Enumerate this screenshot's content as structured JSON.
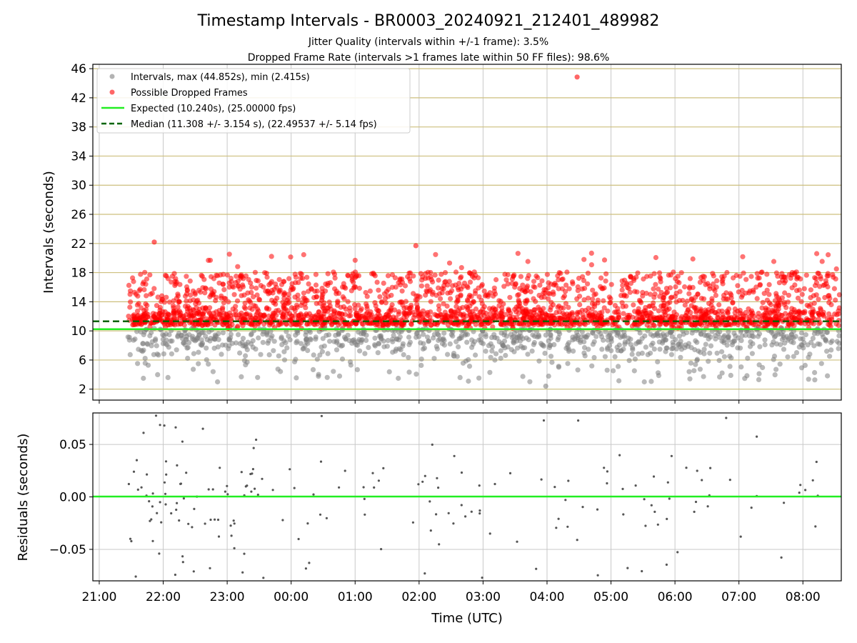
{
  "chart_data": [
    {
      "type": "scatter",
      "title": "Timestamp Intervals - BR0003_20240921_212401_489982",
      "subtitle_lines": [
        "Jitter Quality (intervals within +/-1 frame): 3.5%",
        "Dropped Frame Rate (intervals >1 frames late within 50 FF files): 98.6%"
      ],
      "xlabel": "",
      "ylabel": "Intervals (seconds)",
      "xlim_hours": [
        -3.1,
        8.6
      ],
      "ylim": [
        0.5,
        46.6
      ],
      "y_ticks": [
        2,
        6,
        10,
        14,
        18,
        22,
        26,
        30,
        34,
        38,
        42,
        46
      ],
      "legend_position": "top-left",
      "grid": true,
      "series": [
        {
          "name": "Intervals, max (44.852s), min (2.415s)",
          "color": "#808080",
          "kind": "points"
        },
        {
          "name": "Possible Dropped Frames",
          "color": "#ff0000",
          "kind": "points"
        },
        {
          "name": "Expected (10.240s), (25.00000 fps)",
          "color": "#22ee22",
          "kind": "hline",
          "y": 10.24
        },
        {
          "name": "Median (11.308 +/- 3.154 s), (22.49537 +/- 5.14 fps)",
          "color": "#006400",
          "kind": "hline-dashed",
          "y": 11.308
        }
      ],
      "highlight_points": [
        {
          "x_hours": 4.47,
          "y": 44.852,
          "series": "Possible Dropped Frames"
        },
        {
          "x_hours": -2.14,
          "y": 22.2,
          "series": "Possible Dropped Frames"
        },
        {
          "x_hours": 1.95,
          "y": 21.7,
          "series": "Possible Dropped Frames"
        },
        {
          "x_hours": 3.98,
          "y": 2.415,
          "series": "Intervals, max (44.852s), min (2.415s)"
        }
      ],
      "sampled_points": "randomly generated to match the visual density"
    },
    {
      "type": "scatter",
      "xlabel": "Time (UTC)",
      "ylabel": "Residuals (seconds)",
      "ylim": [
        -0.08,
        0.08
      ],
      "y_ticks": [
        0.05,
        0.0,
        -0.05
      ],
      "y_tick_labels": [
        "0.05",
        "0.00",
        "−0.05"
      ],
      "x_ticks": [
        "21:00",
        "22:00",
        "23:00",
        "00:00",
        "01:00",
        "02:00",
        "03:00",
        "04:00",
        "05:00",
        "06:00",
        "07:00",
        "08:00"
      ],
      "zero_line_color": "#22ee22",
      "point_color": "#555555"
    }
  ],
  "colors": {
    "grid_top": "#cdbf7d",
    "grid_gray": "#c8c8c8"
  }
}
